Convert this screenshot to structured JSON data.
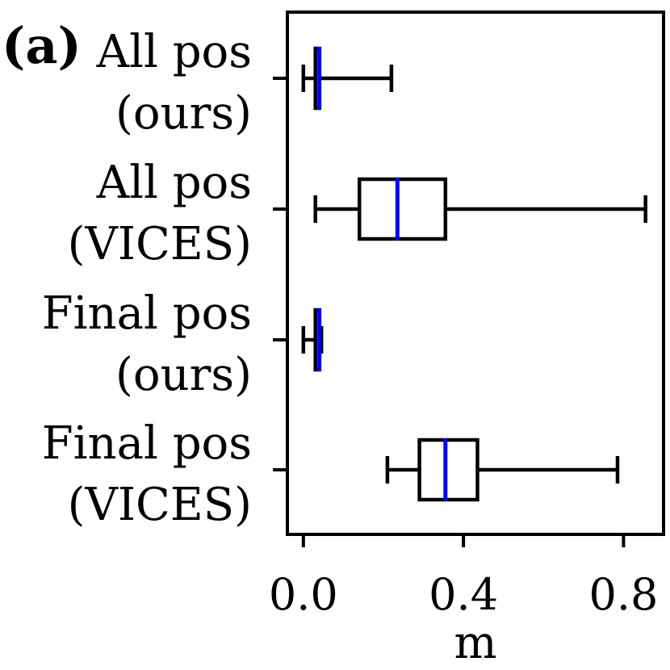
{
  "panel_label": "(a)",
  "chart_data": {
    "type": "box",
    "orientation": "horizontal",
    "xlabel": "m",
    "xlim": [
      -0.04,
      0.9
    ],
    "xticks": [
      0.0,
      0.4,
      0.8
    ],
    "xtick_labels": [
      "0.0",
      "0.4",
      "0.8"
    ],
    "median_color": "#0000ff",
    "box_color": "#000000",
    "categories": [
      {
        "line1": "All pos",
        "line2": "(ours)"
      },
      {
        "line1": "All pos",
        "line2": "(VICES)"
      },
      {
        "line1": "Final pos",
        "line2": "(ours)"
      },
      {
        "line1": "Final pos",
        "line2": "(VICES)"
      }
    ],
    "boxes": [
      {
        "whisker_low": 0.0,
        "q1": 0.03,
        "median": 0.04,
        "q3": 0.04,
        "whisker_high": 0.22
      },
      {
        "whisker_low": 0.03,
        "q1": 0.14,
        "median": 0.235,
        "q3": 0.355,
        "whisker_high": 0.855
      },
      {
        "whisker_low": 0.0,
        "q1": 0.03,
        "median": 0.04,
        "q3": 0.04,
        "whisker_high": 0.045
      },
      {
        "whisker_low": 0.21,
        "q1": 0.29,
        "median": 0.355,
        "q3": 0.435,
        "whisker_high": 0.785
      }
    ]
  }
}
